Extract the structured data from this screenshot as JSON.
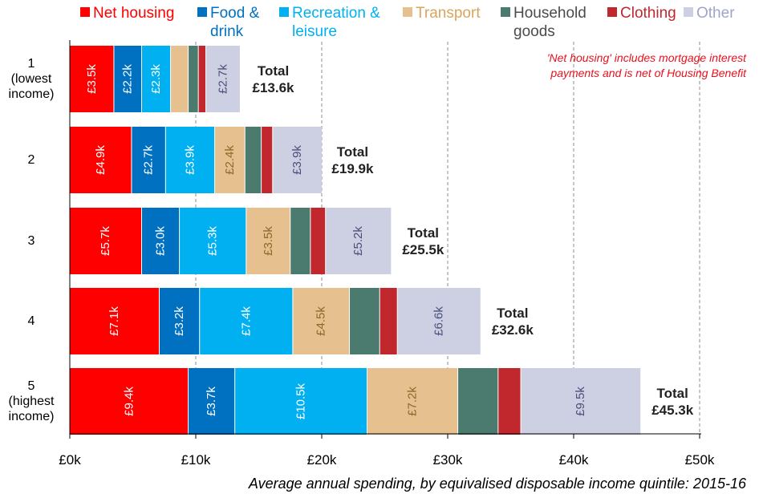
{
  "chart_data": {
    "type": "bar",
    "orientation": "horizontal",
    "stacked": true,
    "caption": "Average annual spending, by equivalised disposable income quintile: 2015-16",
    "note_lines": [
      "'Net housing' includes mortgage interest",
      "payments and is net of Housing Benefit"
    ],
    "xlim": [
      0,
      50
    ],
    "x_ticks": [
      0,
      10,
      20,
      30,
      40,
      50
    ],
    "x_tick_labels": [
      "£0k",
      "£10k",
      "£20k",
      "£30k",
      "£40k",
      "£50k"
    ],
    "grid": "vertical dashed",
    "legend_position": "top",
    "categories": [
      {
        "lines": [
          "1",
          "(lowest",
          "income)"
        ]
      },
      {
        "lines": [
          "2"
        ]
      },
      {
        "lines": [
          "3"
        ]
      },
      {
        "lines": [
          "4"
        ]
      },
      {
        "lines": [
          "5",
          "(highest",
          "income)"
        ]
      }
    ],
    "series": [
      {
        "name_lines": [
          "Net housing"
        ],
        "color": "#ff0000",
        "label_color": "#ffffff",
        "values": [
          3.5,
          4.9,
          5.7,
          7.1,
          9.4
        ],
        "labels": [
          "£3.5k",
          "£4.9k",
          "£5.7k",
          "£7.1k",
          "£9.4k"
        ]
      },
      {
        "name_lines": [
          "Food &",
          "drink"
        ],
        "color": "#0070c0",
        "label_color": "#ffffff",
        "values": [
          2.2,
          2.7,
          3.0,
          3.2,
          3.7
        ],
        "labels": [
          "£2.2k",
          "£2.7k",
          "£3.0k",
          "£3.2k",
          "£3.7k"
        ]
      },
      {
        "name_lines": [
          "Recreation &",
          "leisure"
        ],
        "color": "#00b0f0",
        "label_color": "#ffffff",
        "values": [
          2.3,
          3.9,
          5.3,
          7.4,
          10.5
        ],
        "labels": [
          "£2.3k",
          "£3.9k",
          "£5.3k",
          "£7.4k",
          "£10.5k"
        ]
      },
      {
        "name_lines": [
          "Transport"
        ],
        "color": "#e6c08e",
        "label_color": "#8a6a2a",
        "values": [
          1.4,
          2.4,
          3.5,
          4.5,
          7.2
        ],
        "labels": [
          "",
          "£2.4k",
          "£3.5k",
          "£4.5k",
          "£7.2k"
        ]
      },
      {
        "name_lines": [
          "Household",
          "goods"
        ],
        "color": "#4b7a6f",
        "label_color": "#ffffff",
        "values": [
          0.8,
          1.3,
          1.6,
          2.4,
          3.2
        ],
        "labels": [
          "",
          "",
          "",
          "",
          ""
        ]
      },
      {
        "name_lines": [
          "Clothing"
        ],
        "color": "#c0282d",
        "label_color": "#ffffff",
        "values": [
          0.6,
          0.9,
          1.2,
          1.4,
          1.8
        ],
        "labels": [
          "",
          "",
          "",
          "",
          ""
        ]
      },
      {
        "name_lines": [
          "Other"
        ],
        "color": "#cdd0e3",
        "label_color": "#4a4f7a",
        "values": [
          2.7,
          3.9,
          5.2,
          6.6,
          9.5
        ],
        "labels": [
          "£2.7k",
          "£3.9k",
          "£5.2k",
          "£6.6k",
          "£9.5k"
        ]
      }
    ],
    "totals": [
      {
        "word": "Total",
        "value": "£13.6k",
        "amount": 13.6
      },
      {
        "word": "Total",
        "value": "£19.9k",
        "amount": 19.9
      },
      {
        "word": "Total",
        "value": "£25.5k",
        "amount": 25.5
      },
      {
        "word": "Total",
        "value": "£32.6k",
        "amount": 32.6
      },
      {
        "word": "Total",
        "value": "£45.3k",
        "amount": 45.3
      }
    ],
    "legend_label_colors": [
      "#ff0000",
      "#0070c0",
      "#00b0f0",
      "#d9a55e",
      "#4b4b4b",
      "#c0282d",
      "#9fa4c9"
    ]
  }
}
